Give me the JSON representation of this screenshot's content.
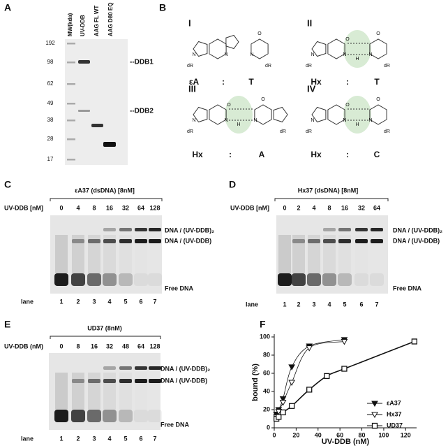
{
  "panel_a": {
    "letter": "A",
    "lanes": [
      "MW(kda)",
      "UV-DDB",
      "AAG FL WT",
      "AAG D80 EQ"
    ],
    "mw_markers": [
      192,
      98,
      62,
      49,
      38,
      28,
      17
    ],
    "bands": [
      "--DDB1",
      "--DDB2"
    ]
  },
  "panel_b": {
    "letter": "B",
    "sugar": "dR",
    "atoms": {
      "n": "N",
      "o": "O",
      "h": "H"
    },
    "structures": [
      {
        "numeral": "I",
        "pair": [
          "εA",
          ":",
          "T"
        ]
      },
      {
        "numeral": "II",
        "pair": [
          "Hx",
          ":",
          "T"
        ]
      },
      {
        "numeral": "III",
        "pair": [
          "Hx",
          ":",
          "A"
        ]
      },
      {
        "numeral": "IV",
        "pair": [
          "Hx",
          ":",
          "C"
        ]
      }
    ]
  },
  "gels": [
    {
      "letter": "C",
      "title": "εA37 (dsDNA) [8nM]",
      "conc_label": "UV-DDB [nM]",
      "concentrations": [
        0,
        4,
        8,
        16,
        32,
        64,
        128
      ],
      "dimer": "DNA / (UV-DDB)₂",
      "monomer": "DNA / (UV-DDB)",
      "free": "Free DNA",
      "lane_label": "lane",
      "lanes": [
        1,
        2,
        3,
        4,
        5,
        6,
        7
      ]
    },
    {
      "letter": "D",
      "title": "Hx37 (dsDNA) [8nM]",
      "conc_label": "UV-DDB [nM]",
      "concentrations": [
        0,
        2,
        4,
        8,
        16,
        32,
        64
      ],
      "dimer": "DNA / (UV-DDB)₂",
      "monomer": "DNA / (UV-DDB)",
      "free": "Free DNA",
      "lane_label": "lane",
      "lanes": [
        1,
        2,
        3,
        4,
        5,
        6,
        7
      ]
    },
    {
      "letter": "E",
      "title": "UD37 (8nM)",
      "conc_label": "UV-DDB (nM)",
      "concentrations": [
        0,
        8,
        16,
        32,
        48,
        64,
        128
      ],
      "dimer": "DNA / (UV-DDB)₂",
      "monomer": "DNA / (UV-DDB)",
      "free": "Free DNA",
      "lane_label": "lane",
      "lanes": [
        1,
        2,
        3,
        4,
        5,
        6,
        7
      ]
    }
  ],
  "chart_data": {
    "type": "scatter",
    "letter": "F",
    "x_label": "UV-DDB (nM)",
    "y_label": "bound (%)",
    "xlim": [
      0,
      130
    ],
    "xticks": [
      0,
      20,
      40,
      60,
      80,
      100,
      120
    ],
    "ylim": [
      0,
      100
    ],
    "yticks": [
      0,
      20,
      40,
      60,
      80,
      100
    ],
    "legend": "lower right",
    "series": [
      {
        "name": "εA37",
        "color": "#111111",
        "marker": "triangle-down-filled",
        "x": [
          2,
          4,
          8,
          16,
          32,
          64
        ],
        "values": [
          15,
          20,
          32,
          67,
          90,
          97
        ]
      },
      {
        "name": "Hx37",
        "color": "#111111",
        "marker": "triangle-down-open",
        "x": [
          2,
          4,
          8,
          16,
          32,
          64
        ],
        "values": [
          12,
          18,
          28,
          50,
          88,
          95
        ]
      },
      {
        "name": "UD37",
        "color": "#111111",
        "marker": "square-open",
        "x": [
          2,
          4,
          8,
          16,
          32,
          48,
          64,
          128
        ],
        "values": [
          10,
          12,
          17,
          24,
          42,
          57,
          65,
          95
        ]
      }
    ]
  }
}
